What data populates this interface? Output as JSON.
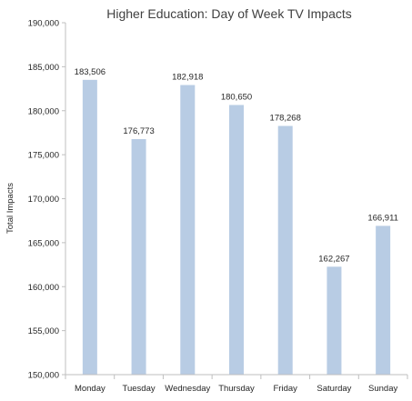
{
  "chart_data": {
    "type": "bar",
    "title": "Higher Education: Day of Week TV Impacts",
    "xlabel": "",
    "ylabel": "Total Impacts",
    "categories": [
      "Monday",
      "Tuesday",
      "Wednesday",
      "Thursday",
      "Friday",
      "Saturday",
      "Sunday"
    ],
    "values": [
      183506,
      176773,
      182918,
      180650,
      178268,
      162267,
      166911
    ],
    "data_labels": [
      "183,506",
      "176,773",
      "182,918",
      "180,650",
      "178,268",
      "162,267",
      "166,911"
    ],
    "ylim": [
      150000,
      190000
    ],
    "yticks": [
      150000,
      155000,
      160000,
      165000,
      170000,
      175000,
      180000,
      185000,
      190000
    ],
    "ytick_labels": [
      "150,000",
      "155,000",
      "160,000",
      "165,000",
      "170,000",
      "175,000",
      "180,000",
      "185,000",
      "190,000"
    ],
    "grid": false,
    "legend": "none",
    "bar_color": "#b8cce4",
    "axis_color": "#bfbfbf"
  }
}
